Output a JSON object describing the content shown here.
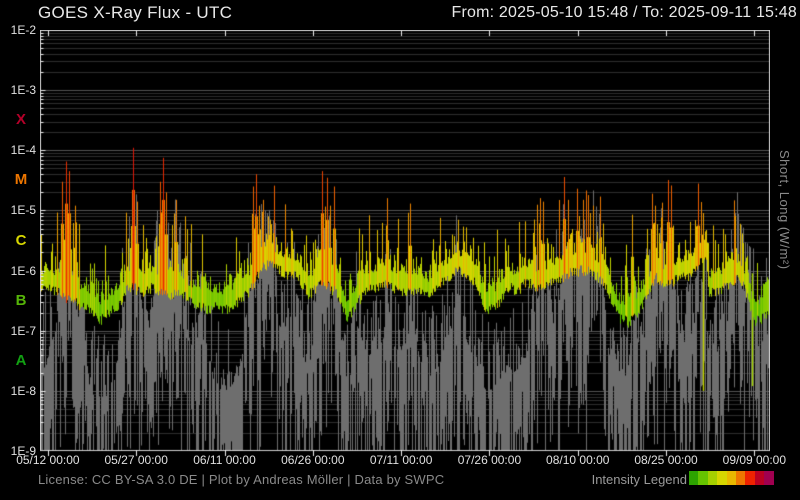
{
  "header": {
    "title": "GOES X-Ray Flux - UTC",
    "range_label": "From: 2025-05-10 15:48  /  To: 2025-09-11 15:48"
  },
  "footer": {
    "license": "License: CC BY-SA 3.0 DE | Plot by Andreas Möller | Data by SWPC",
    "legend_label": "Intensity Legend"
  },
  "colors": {
    "background": "#000000",
    "frame": "#d0d0d0",
    "grid_major": "#555555",
    "grid_minor": "#2e2e2e",
    "text": "#e8e8e8",
    "muted_text": "#8a8a8a",
    "short_series": "#6e6e6e"
  },
  "chart_data": {
    "type": "line",
    "title": "GOES X-Ray Flux - UTC",
    "x_start": "2025-05-10 15:48",
    "x_end": "2025-09-11 15:48",
    "x_range_days": 124,
    "grid": true,
    "y_axis": {
      "scale": "log",
      "min": 1e-09,
      "max": 0.01,
      "tick_labels": [
        "1E-2",
        "1E-3",
        "1E-4",
        "1E-5",
        "1E-6",
        "1E-7",
        "1E-8",
        "1E-9"
      ],
      "unit_label": "Short, Long (W/m²)"
    },
    "x_ticks": [
      {
        "day": 1.342,
        "label": "05/12 00:00"
      },
      {
        "day": 16.342,
        "label": "05/27 00:00"
      },
      {
        "day": 31.342,
        "label": "06/11 00:00"
      },
      {
        "day": 46.342,
        "label": "06/26 00:00"
      },
      {
        "day": 61.342,
        "label": "07/11 00:00"
      },
      {
        "day": 76.342,
        "label": "07/26 00:00"
      },
      {
        "day": 91.342,
        "label": "08/10 00:00"
      },
      {
        "day": 106.342,
        "label": "08/25 00:00"
      },
      {
        "day": 121.342,
        "label": "09/09 00:00"
      }
    ],
    "class_bands": [
      {
        "label": "X",
        "color": "#b40029",
        "range": [
          0.0001,
          0.001
        ]
      },
      {
        "label": "M",
        "color": "#ee7600",
        "range": [
          1e-05,
          0.0001
        ]
      },
      {
        "label": "C",
        "color": "#d6d600",
        "range": [
          1e-06,
          1e-05
        ]
      },
      {
        "label": "B",
        "color": "#55b408",
        "range": [
          1e-07,
          1e-06
        ]
      },
      {
        "label": "A",
        "color": "#12a012",
        "range": [
          1e-08,
          1e-07
        ]
      }
    ],
    "series": [
      {
        "name": "short",
        "style": "gray min-max envelope",
        "color": "#6e6e6e"
      },
      {
        "name": "long",
        "style": "min-max envelope colored by intensity"
      }
    ],
    "intensity_scale": [
      {
        "log": -8.0,
        "color": "#168c00"
      },
      {
        "log": -7.0,
        "color": "#2da300"
      },
      {
        "log": -6.6,
        "color": "#55bb00"
      },
      {
        "log": -6.2,
        "color": "#88cc00"
      },
      {
        "log": -5.9,
        "color": "#b4d200"
      },
      {
        "log": -5.6,
        "color": "#d6d600"
      },
      {
        "log": -5.2,
        "color": "#e6b400"
      },
      {
        "log": -4.9,
        "color": "#ee8800"
      },
      {
        "log": -4.5,
        "color": "#ee5500"
      },
      {
        "log": -4.1,
        "color": "#e62500"
      },
      {
        "log": -3.7,
        "color": "#cc0018"
      },
      {
        "log": -3.0,
        "color": "#a0004f"
      }
    ],
    "legend_swatches": [
      "#2da300",
      "#66c400",
      "#a5d000",
      "#d6d600",
      "#e8b800",
      "#ee7700",
      "#ee2200",
      "#bb0022",
      "#a00050"
    ],
    "long_baseline_points": [
      [
        0,
        8e-07
      ],
      [
        3,
        9e-07
      ],
      [
        8,
        5e-07
      ],
      [
        10,
        3.2e-07
      ],
      [
        12,
        4.5e-07
      ],
      [
        15,
        8e-07
      ],
      [
        17,
        6e-07
      ],
      [
        20,
        9e-07
      ],
      [
        24,
        8e-07
      ],
      [
        28,
        5e-07
      ],
      [
        30,
        4e-07
      ],
      [
        33,
        6e-07
      ],
      [
        36,
        1.1e-06
      ],
      [
        39,
        1.4e-06
      ],
      [
        42,
        9e-07
      ],
      [
        45,
        8e-07
      ],
      [
        48,
        1.3e-06
      ],
      [
        50,
        1e-06
      ],
      [
        52,
        3.5e-07
      ],
      [
        54,
        6e-07
      ],
      [
        56,
        1.1e-06
      ],
      [
        59,
        1.3e-06
      ],
      [
        62,
        9e-07
      ],
      [
        64,
        1e-06
      ],
      [
        66,
        8e-07
      ],
      [
        68,
        1.2e-06
      ],
      [
        71,
        1.1e-06
      ],
      [
        74,
        7e-07
      ],
      [
        76,
        5e-07
      ],
      [
        78,
        6e-07
      ],
      [
        80,
        8e-07
      ],
      [
        83,
        1e-06
      ],
      [
        86,
        1.2e-06
      ],
      [
        89,
        1.5e-06
      ],
      [
        92,
        1.2e-06
      ],
      [
        95,
        8e-07
      ],
      [
        97,
        4e-07
      ],
      [
        100,
        3e-07
      ],
      [
        102,
        5e-07
      ],
      [
        104,
        9e-07
      ],
      [
        107,
        1.4e-06
      ],
      [
        110,
        1.8e-06
      ],
      [
        112,
        2e-06
      ],
      [
        113.2,
        1.6e-06
      ],
      [
        113.6,
        4.5e-07
      ],
      [
        115,
        5e-07
      ],
      [
        117,
        6e-07
      ],
      [
        118.5,
        9e-07
      ],
      [
        120.3,
        8e-07
      ],
      [
        121,
        3e-07
      ],
      [
        122.5,
        3.5e-07
      ],
      [
        124,
        4e-07
      ]
    ],
    "flares": [
      [
        3.7,
        3e-05
      ],
      [
        4.4,
        6.5e-05
      ],
      [
        4.9,
        4.5e-05
      ],
      [
        5.9,
        1.2e-05
      ],
      [
        14.6,
        5e-06
      ],
      [
        15.8,
        0.00011
      ],
      [
        16.5,
        1.4e-05
      ],
      [
        20.4,
        3e-05
      ],
      [
        20.9,
        7.5e-05
      ],
      [
        21.4,
        2e-05
      ],
      [
        23.1,
        1.5e-05
      ],
      [
        24.6,
        8e-06
      ],
      [
        27.5,
        4e-06
      ],
      [
        36.2,
        2.5e-05
      ],
      [
        36.7,
        4e-05
      ],
      [
        37.2,
        1.2e-05
      ],
      [
        37.9,
        1.5e-05
      ],
      [
        38.7,
        8e-06
      ],
      [
        42.6,
        5e-06
      ],
      [
        47.9,
        4.5e-05
      ],
      [
        48.8,
        3.5e-05
      ],
      [
        49.3,
        1.2e-05
      ],
      [
        49.9,
        2.5e-05
      ],
      [
        54.2,
        5e-06
      ],
      [
        58.9,
        1.6e-05
      ],
      [
        62.9,
        1.3e-05
      ],
      [
        71.0,
        7e-06
      ],
      [
        84.9,
        1.6e-05
      ],
      [
        85.4,
        1.4e-05
      ],
      [
        89.0,
        3.6e-05
      ],
      [
        89.7,
        1.5e-05
      ],
      [
        91.2,
        2.3e-05
      ],
      [
        92.2,
        1.5e-05
      ],
      [
        93.1,
        1.8e-05
      ],
      [
        94.0,
        1.2e-05
      ],
      [
        95.1,
        1.7e-05
      ],
      [
        100.6,
        8.5e-06
      ],
      [
        104.0,
        1.9e-05
      ],
      [
        104.5,
        1.2e-05
      ],
      [
        106.7,
        3.2e-05
      ],
      [
        107.2,
        2.6e-05
      ],
      [
        111.8,
        2.8e-05
      ],
      [
        116.4,
        4e-06
      ],
      [
        118.9,
        6e-06
      ]
    ],
    "dropout_lines": [
      {
        "day": 112.6,
        "from": 1.6e-06,
        "to": 1e-08
      },
      {
        "day": 120.9,
        "from": 9e-07,
        "to": 1.2e-08
      }
    ]
  }
}
